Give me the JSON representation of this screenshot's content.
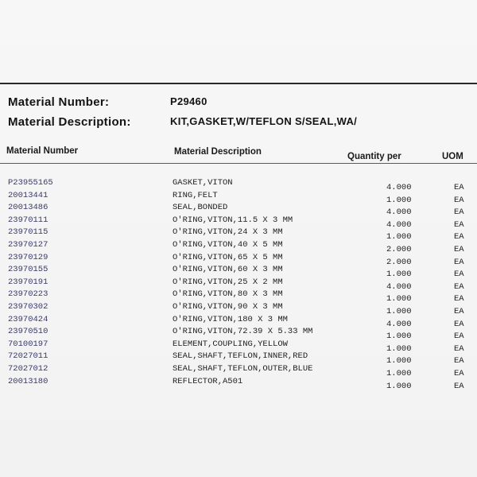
{
  "header": {
    "number_label": "Material Number:",
    "number_value": "P29460",
    "desc_label": "Material Description:",
    "desc_value": "KIT,GASKET,W/TEFLON S/SEAL,WA/"
  },
  "table": {
    "columns": [
      "Material Number",
      "Material Description",
      "Quantity per",
      "UOM"
    ],
    "rows": [
      {
        "number": "P23955165",
        "desc": "GASKET,VITON",
        "qty": "4.000",
        "uom": "EA"
      },
      {
        "number": "20013441",
        "desc": "RING,FELT",
        "qty": "1.000",
        "uom": "EA"
      },
      {
        "number": "20013486",
        "desc": "SEAL,BONDED",
        "qty": "4.000",
        "uom": "EA"
      },
      {
        "number": "23970111",
        "desc": "O'RING,VITON,11.5 X 3 MM",
        "qty": "4.000",
        "uom": "EA"
      },
      {
        "number": "23970115",
        "desc": "O'RING,VITON,24 X 3 MM",
        "qty": "1.000",
        "uom": "EA"
      },
      {
        "number": "23970127",
        "desc": "O'RING,VITON,40 X 5 MM",
        "qty": "2.000",
        "uom": "EA"
      },
      {
        "number": "23970129",
        "desc": "O'RING,VITON,65 X 5 MM",
        "qty": "2.000",
        "uom": "EA"
      },
      {
        "number": "23970155",
        "desc": "O'RING,VITON,60 X 3 MM",
        "qty": "1.000",
        "uom": "EA"
      },
      {
        "number": "23970191",
        "desc": "O'RING,VITON,25 X 2 MM",
        "qty": "4.000",
        "uom": "EA"
      },
      {
        "number": "23970223",
        "desc": "O'RING,VITON,80 X 3 MM",
        "qty": "1.000",
        "uom": "EA"
      },
      {
        "number": "23970302",
        "desc": "O'RING,VITON,90 X 3 MM",
        "qty": "1.000",
        "uom": "EA"
      },
      {
        "number": "23970424",
        "desc": "O'RING,VITON,180 X 3 MM",
        "qty": "4.000",
        "uom": "EA"
      },
      {
        "number": "23970510",
        "desc": "O'RING,VITON,72.39 X 5.33 MM",
        "qty": "1.000",
        "uom": "EA"
      },
      {
        "number": "70100197",
        "desc": "ELEMENT,COUPLING,YELLOW",
        "qty": "1.000",
        "uom": "EA"
      },
      {
        "number": "72027011",
        "desc": "SEAL,SHAFT,TEFLON,INNER,RED",
        "qty": "1.000",
        "uom": "EA"
      },
      {
        "number": "72027012",
        "desc": "SEAL,SHAFT,TEFLON,OUTER,BLUE",
        "qty": "1.000",
        "uom": "EA"
      },
      {
        "number": "20013180",
        "desc": "REFLECTOR,A501",
        "qty": "1.000",
        "uom": "EA"
      }
    ]
  }
}
